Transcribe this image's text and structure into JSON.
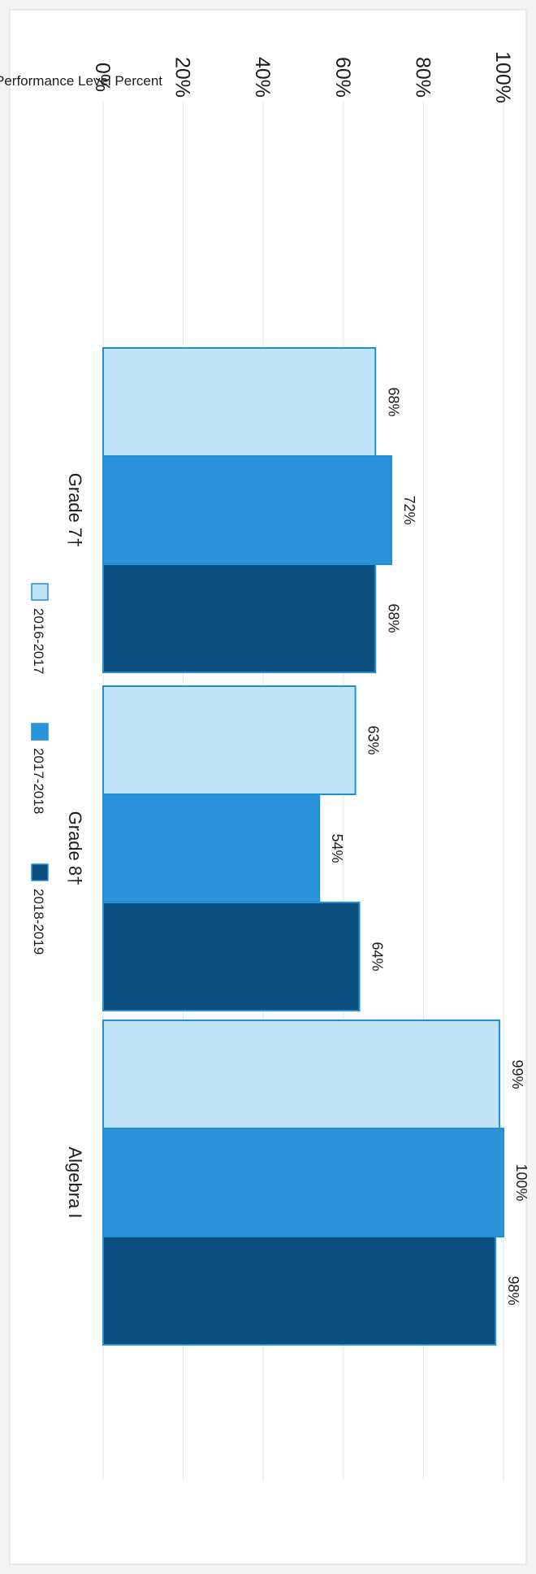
{
  "chart_data": {
    "type": "bar",
    "orientation": "vertical-rotated",
    "title": "",
    "ylabel": "Performance Level Percent",
    "xlabel": "",
    "ylim": [
      0,
      100
    ],
    "yticks": [
      "0%",
      "20%",
      "40%",
      "60%",
      "80%",
      "100%"
    ],
    "grid": true,
    "legend_position": "bottom",
    "categories": [
      "Grade 7†",
      "Grade 8†",
      "Algebra I"
    ],
    "series": [
      {
        "name": "2016-2017",
        "color": "#bfe4f8",
        "values": [
          68,
          63,
          99
        ],
        "labels": [
          "68%",
          "63%",
          "99%"
        ]
      },
      {
        "name": "2017-2018",
        "color": "#2a93d9",
        "values": [
          72,
          54,
          100
        ],
        "labels": [
          "72%",
          "54%",
          "100%"
        ]
      },
      {
        "name": "2018-2019",
        "color": "#0b4f7e",
        "values": [
          68,
          64,
          98
        ],
        "labels": [
          "68%",
          "64%",
          "98%"
        ]
      }
    ]
  }
}
